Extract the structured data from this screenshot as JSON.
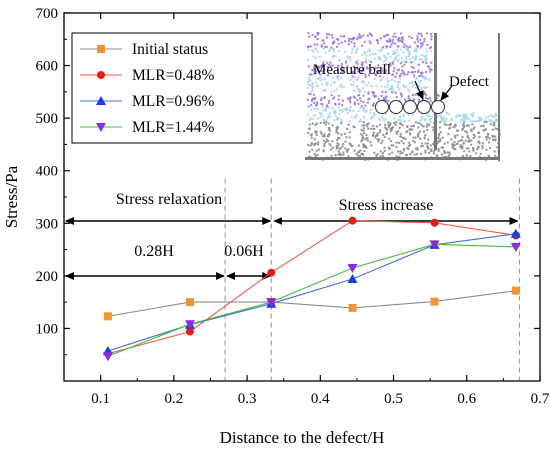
{
  "chart_data": {
    "type": "line",
    "xlabel": "Distance to the defect/H",
    "ylabel": "Stress/Pa",
    "xlim": [
      0.05,
      0.7
    ],
    "ylim": [
      0,
      700
    ],
    "x_ticks": [
      "0.1",
      "0.2",
      "0.3",
      "0.4",
      "0.5",
      "0.6",
      "0.7"
    ],
    "y_ticks": [
      "100",
      "200",
      "300",
      "400",
      "500",
      "600",
      "700"
    ],
    "legend_position": "upper-left",
    "grid": false,
    "series": [
      {
        "name": "Initial status",
        "color": "#8c8c8c",
        "marker_color": "#f39433",
        "marker": "square",
        "x": [
          0.11,
          0.222,
          0.333,
          0.444,
          0.556,
          0.667
        ],
        "y": [
          123,
          150,
          150,
          139,
          151,
          172
        ]
      },
      {
        "name": "MLR=0.48%",
        "color": "#f25a4a",
        "marker_color": "#e0201b",
        "marker": "circle",
        "x": [
          0.11,
          0.222,
          0.333,
          0.444,
          0.556,
          0.667
        ],
        "y": [
          52,
          94,
          206,
          305,
          301,
          277
        ]
      },
      {
        "name": "MLR=0.96%",
        "color": "#4a6fd8",
        "marker_color": "#1a3de0",
        "marker": "triangle-up",
        "x": [
          0.11,
          0.222,
          0.333,
          0.444,
          0.556,
          0.667
        ],
        "y": [
          57,
          107,
          147,
          194,
          259,
          280
        ]
      },
      {
        "name": "MLR=1.44%",
        "color": "#49b849",
        "marker_color": "#8a2be2",
        "marker": "triangle-down",
        "x": [
          0.11,
          0.222,
          0.333,
          0.444,
          0.556,
          0.667
        ],
        "y": [
          47,
          108,
          150,
          215,
          260,
          255
        ]
      }
    ],
    "annotations": {
      "stress_relaxation": "Stress relaxation",
      "stress_increase": "Stress increase",
      "dist_028": "0.28H",
      "dist_006": "0.06H",
      "boundaries_x": [
        0.27,
        0.333,
        0.672
      ]
    },
    "inset": {
      "measure_ball": "Measure ball",
      "defect": "Defect"
    }
  }
}
